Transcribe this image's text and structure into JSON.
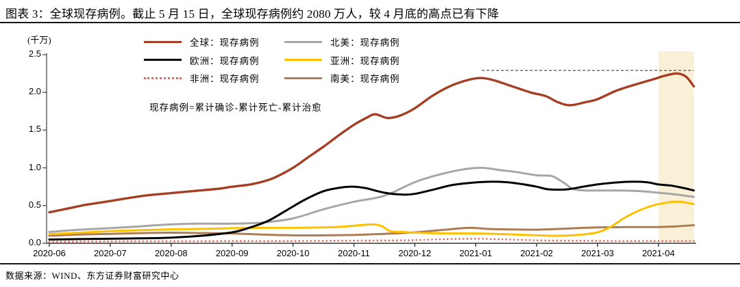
{
  "header": {
    "title": "图表 3：全球现存病例。截止 5 月 15 日，全球现存病例约 2080 万人，较 4 月底的高点已有下降"
  },
  "footer": {
    "source": "数据来源：WIND、东方证券财富研究中心"
  },
  "chart_data": {
    "type": "line",
    "title": "全球现存病例",
    "unit_label": "(千万)",
    "annotation": "现存病例=累计确诊-累计死亡-累计治愈",
    "x_tick_labels": [
      "2020-06",
      "2020-07",
      "2020-08",
      "2020-09",
      "2020-10",
      "2020-11",
      "2020-12",
      "2021-01",
      "2021-02",
      "2021-03",
      "2021-04"
    ],
    "y_tick_labels": [
      "2.5",
      "2.0",
      "1.5",
      "1.0",
      "0.5",
      "0.0"
    ],
    "y_tick_values": [
      2.5,
      2.0,
      1.5,
      1.0,
      0.5,
      0.0
    ],
    "ylim": [
      0,
      2.5
    ],
    "x_months_range": [
      0,
      10.58
    ],
    "grid": "off",
    "legend_position": "top-inside",
    "legend": [
      {
        "name": "全球：现存病例",
        "color": "#A63E24",
        "style": "solid"
      },
      {
        "name": "北美：现存病例",
        "color": "#A6A6A6",
        "style": "solid"
      },
      {
        "name": "欧洲：现存病例",
        "color": "#000000",
        "style": "solid"
      },
      {
        "name": "亚洲：现存病例",
        "color": "#FFC000",
        "style": "solid"
      },
      {
        "name": "非洲：现存病例",
        "color": "#EB6352",
        "style": "dotted"
      },
      {
        "name": "南美：现存病例",
        "color": "#AE7C52",
        "style": "solid"
      }
    ],
    "series": [
      {
        "name": "非洲：现存病例",
        "color": "#EB6352",
        "style": "dotted",
        "width": 2.6,
        "points": [
          [
            0,
            0.02
          ],
          [
            0.5,
            0.022
          ],
          [
            1,
            0.025
          ],
          [
            1.5,
            0.027
          ],
          [
            2,
            0.028
          ],
          [
            2.5,
            0.028
          ],
          [
            3,
            0.03
          ],
          [
            3.5,
            0.03
          ],
          [
            4,
            0.03
          ],
          [
            4.5,
            0.032
          ],
          [
            5,
            0.035
          ],
          [
            5.5,
            0.038
          ],
          [
            6,
            0.042
          ],
          [
            6.5,
            0.055
          ],
          [
            7,
            0.06
          ],
          [
            7.3,
            0.055
          ],
          [
            7.6,
            0.048
          ],
          [
            8,
            0.04
          ],
          [
            8.5,
            0.035
          ],
          [
            9,
            0.032
          ],
          [
            9.5,
            0.03
          ],
          [
            10,
            0.03
          ],
          [
            10.58,
            0.03
          ]
        ]
      },
      {
        "name": "南美：现存病例",
        "color": "#AE7C52",
        "style": "solid",
        "width": 3,
        "points": [
          [
            0,
            0.1
          ],
          [
            0.5,
            0.115
          ],
          [
            1,
            0.125
          ],
          [
            1.5,
            0.135
          ],
          [
            2,
            0.14
          ],
          [
            2.5,
            0.135
          ],
          [
            3,
            0.13
          ],
          [
            3.5,
            0.115
          ],
          [
            4,
            0.105
          ],
          [
            4.5,
            0.105
          ],
          [
            5,
            0.11
          ],
          [
            5.5,
            0.125
          ],
          [
            6,
            0.145
          ],
          [
            6.5,
            0.18
          ],
          [
            6.9,
            0.205
          ],
          [
            7.2,
            0.19
          ],
          [
            7.5,
            0.185
          ],
          [
            8,
            0.18
          ],
          [
            8.5,
            0.195
          ],
          [
            9,
            0.21
          ],
          [
            9.5,
            0.215
          ],
          [
            10,
            0.215
          ],
          [
            10.3,
            0.225
          ],
          [
            10.58,
            0.24
          ]
        ]
      },
      {
        "name": "亚洲：现存病例",
        "color": "#FFC000",
        "style": "solid",
        "width": 3,
        "points": [
          [
            0,
            0.12
          ],
          [
            0.5,
            0.14
          ],
          [
            1,
            0.16
          ],
          [
            1.5,
            0.175
          ],
          [
            2,
            0.185
          ],
          [
            2.5,
            0.19
          ],
          [
            3,
            0.2
          ],
          [
            3.5,
            0.205
          ],
          [
            4,
            0.205
          ],
          [
            4.5,
            0.21
          ],
          [
            4.8,
            0.22
          ],
          [
            5.1,
            0.24
          ],
          [
            5.3,
            0.25
          ],
          [
            5.45,
            0.23
          ],
          [
            5.6,
            0.16
          ],
          [
            5.8,
            0.15
          ],
          [
            6,
            0.14
          ],
          [
            6.5,
            0.13
          ],
          [
            7,
            0.13
          ],
          [
            7.5,
            0.12
          ],
          [
            8,
            0.105
          ],
          [
            8.3,
            0.1
          ],
          [
            8.6,
            0.105
          ],
          [
            8.8,
            0.12
          ],
          [
            9,
            0.145
          ],
          [
            9.2,
            0.21
          ],
          [
            9.45,
            0.34
          ],
          [
            9.7,
            0.44
          ],
          [
            9.95,
            0.51
          ],
          [
            10.2,
            0.545
          ],
          [
            10.35,
            0.55
          ],
          [
            10.58,
            0.52
          ]
        ]
      },
      {
        "name": "北美：现存病例",
        "color": "#A6A6A6",
        "style": "solid",
        "width": 3,
        "points": [
          [
            0,
            0.15
          ],
          [
            0.5,
            0.18
          ],
          [
            1,
            0.2
          ],
          [
            1.5,
            0.225
          ],
          [
            2,
            0.25
          ],
          [
            2.5,
            0.26
          ],
          [
            3,
            0.26
          ],
          [
            3.5,
            0.275
          ],
          [
            4,
            0.33
          ],
          [
            4.5,
            0.45
          ],
          [
            5,
            0.55
          ],
          [
            5.5,
            0.63
          ],
          [
            6,
            0.81
          ],
          [
            6.4,
            0.91
          ],
          [
            6.8,
            0.98
          ],
          [
            7.1,
            1.0
          ],
          [
            7.4,
            0.97
          ],
          [
            7.7,
            0.94
          ],
          [
            8,
            0.9
          ],
          [
            8.25,
            0.89
          ],
          [
            8.45,
            0.8
          ],
          [
            8.6,
            0.72
          ],
          [
            8.8,
            0.7
          ],
          [
            9.2,
            0.7
          ],
          [
            9.6,
            0.695
          ],
          [
            10,
            0.67
          ],
          [
            10.3,
            0.645
          ],
          [
            10.58,
            0.615
          ]
        ]
      },
      {
        "name": "欧洲：现存病例",
        "color": "#000000",
        "style": "solid",
        "width": 3,
        "points": [
          [
            0,
            0.05
          ],
          [
            0.5,
            0.055
          ],
          [
            1,
            0.06
          ],
          [
            1.5,
            0.065
          ],
          [
            2,
            0.075
          ],
          [
            2.5,
            0.1
          ],
          [
            3,
            0.145
          ],
          [
            3.3,
            0.21
          ],
          [
            3.6,
            0.3
          ],
          [
            3.9,
            0.44
          ],
          [
            4.2,
            0.58
          ],
          [
            4.5,
            0.69
          ],
          [
            4.8,
            0.74
          ],
          [
            5,
            0.75
          ],
          [
            5.2,
            0.73
          ],
          [
            5.5,
            0.67
          ],
          [
            5.8,
            0.645
          ],
          [
            6,
            0.655
          ],
          [
            6.3,
            0.71
          ],
          [
            6.6,
            0.77
          ],
          [
            6.9,
            0.8
          ],
          [
            7.2,
            0.815
          ],
          [
            7.5,
            0.81
          ],
          [
            7.75,
            0.785
          ],
          [
            8,
            0.75
          ],
          [
            8.2,
            0.715
          ],
          [
            8.5,
            0.715
          ],
          [
            8.8,
            0.755
          ],
          [
            9.1,
            0.79
          ],
          [
            9.5,
            0.815
          ],
          [
            9.8,
            0.81
          ],
          [
            10,
            0.78
          ],
          [
            10.2,
            0.765
          ],
          [
            10.4,
            0.735
          ],
          [
            10.58,
            0.7
          ]
        ]
      },
      {
        "name": "全球：现存病例",
        "color": "#A63E24",
        "style": "solid",
        "width": 3.4,
        "points": [
          [
            0,
            0.41
          ],
          [
            0.3,
            0.46
          ],
          [
            0.6,
            0.51
          ],
          [
            1,
            0.56
          ],
          [
            1.3,
            0.6
          ],
          [
            1.6,
            0.635
          ],
          [
            2,
            0.665
          ],
          [
            2.4,
            0.695
          ],
          [
            2.8,
            0.725
          ],
          [
            3,
            0.75
          ],
          [
            3.3,
            0.78
          ],
          [
            3.6,
            0.84
          ],
          [
            3.8,
            0.91
          ],
          [
            4,
            1.0
          ],
          [
            4.25,
            1.14
          ],
          [
            4.5,
            1.28
          ],
          [
            4.75,
            1.43
          ],
          [
            5,
            1.57
          ],
          [
            5.2,
            1.66
          ],
          [
            5.35,
            1.71
          ],
          [
            5.55,
            1.66
          ],
          [
            5.75,
            1.69
          ],
          [
            6,
            1.79
          ],
          [
            6.3,
            1.96
          ],
          [
            6.6,
            2.09
          ],
          [
            6.9,
            2.17
          ],
          [
            7.1,
            2.19
          ],
          [
            7.3,
            2.16
          ],
          [
            7.6,
            2.08
          ],
          [
            7.9,
            2.0
          ],
          [
            8.15,
            1.95
          ],
          [
            8.35,
            1.87
          ],
          [
            8.55,
            1.83
          ],
          [
            8.8,
            1.87
          ],
          [
            9,
            1.91
          ],
          [
            9.3,
            2.02
          ],
          [
            9.6,
            2.1
          ],
          [
            9.9,
            2.17
          ],
          [
            10.1,
            2.22
          ],
          [
            10.3,
            2.25
          ],
          [
            10.45,
            2.21
          ],
          [
            10.58,
            2.08
          ]
        ]
      }
    ],
    "reference_line": {
      "value": 2.29,
      "x_start_month": 7.1,
      "x_end_month": 10.58,
      "color": "#595959",
      "style": "dashed"
    },
    "highlight_band": {
      "x_start_month": 10.0,
      "x_end_month": 10.58,
      "color": "#FAF0D7"
    }
  }
}
